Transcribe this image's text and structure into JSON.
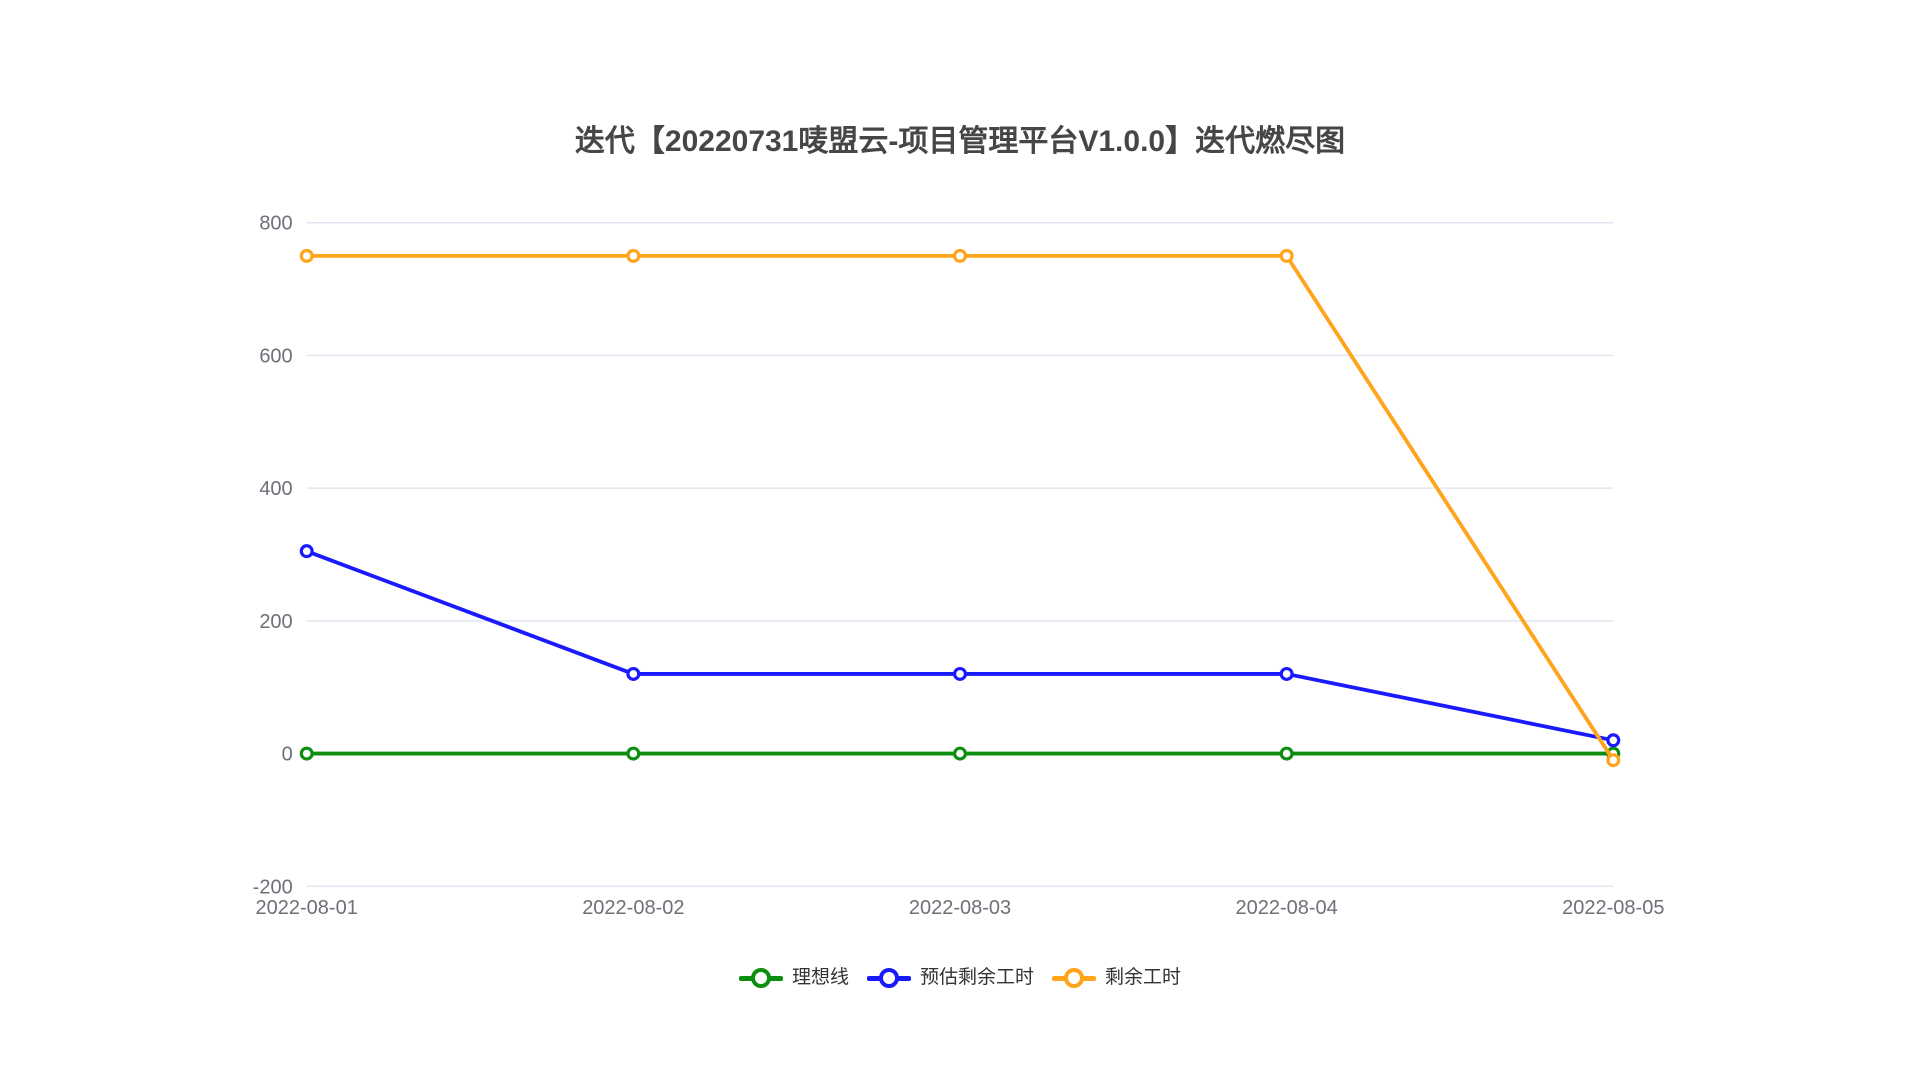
{
  "title": {
    "text": "迭代【20220731唛盟云-项目管理平台V1.0.0】迭代燃尽图"
  },
  "chart_data": {
    "type": "line",
    "title": "迭代【20220731唛盟云-项目管理平台V1.0.0】迭代燃尽图",
    "xlabel": "",
    "ylabel": "",
    "categories": [
      "2022-08-01",
      "2022-08-02",
      "2022-08-03",
      "2022-08-04",
      "2022-08-05"
    ],
    "series": [
      {
        "name": "理想线",
        "color": "#0e8e0e",
        "values": [
          0,
          0,
          0,
          0,
          0
        ]
      },
      {
        "name": "预估剩余工时",
        "color": "#1a1aff",
        "values": [
          305,
          120,
          120,
          120,
          20
        ]
      },
      {
        "name": "剩余工时",
        "color": "#ffa41b",
        "values": [
          750,
          750,
          750,
          750,
          -10
        ]
      }
    ],
    "y_ticks": [
      800,
      600,
      400,
      200,
      0,
      -200
    ],
    "ylim": [
      -200,
      800
    ],
    "grid": true,
    "marker": "hollow-circle",
    "legend_position": "bottom",
    "palette": {
      "grid_line": "#e0e6f1",
      "axis_label": "#6e7079",
      "title_text": "#464646",
      "legend_text": "#333333",
      "background": "#ffffff"
    }
  }
}
